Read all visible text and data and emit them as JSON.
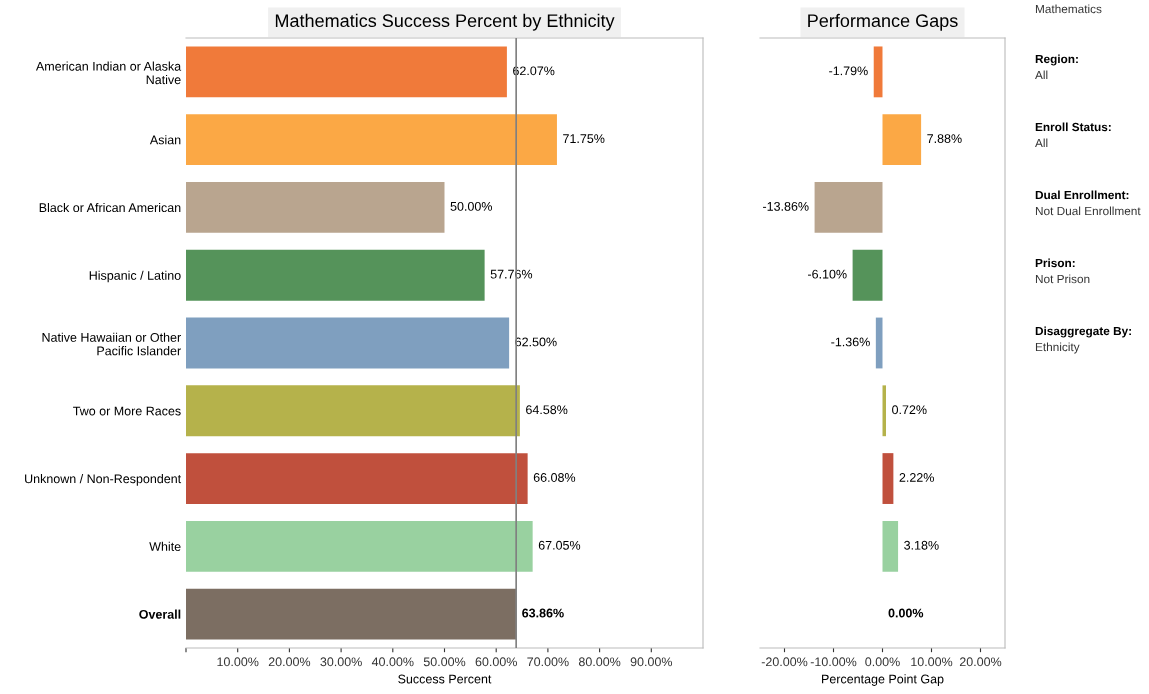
{
  "chart_data": [
    {
      "type": "bar",
      "orientation": "horizontal",
      "title": "Mathematics Success Percent by Ethnicity",
      "xlabel": "Success Percent",
      "categories": [
        "American Indian or Alaska\nNative",
        "Asian",
        "Black or African American",
        "Hispanic / Latino",
        "Native Hawaiian or Other\nPacific Islander",
        "Two or More Races",
        "Unknown / Non-Respondent",
        "White",
        "Overall"
      ],
      "values": [
        62.07,
        71.75,
        50.0,
        57.76,
        62.5,
        64.58,
        66.08,
        67.05,
        63.86
      ],
      "colors": [
        "#f07a3a",
        "#fba845",
        "#b9a58f",
        "#55935a",
        "#7f9fbf",
        "#b5b24b",
        "#c0503d",
        "#99d1a0",
        "#7c6e62"
      ],
      "value_labels": [
        "62.07%",
        "71.75%",
        "50.00%",
        "57.76%",
        "62.50%",
        "64.58%",
        "66.08%",
        "67.05%",
        "63.86%"
      ],
      "xlim": [
        0,
        100
      ],
      "xticks": [
        {
          "value": 0,
          "label": null
        },
        {
          "value": 10,
          "label": "10.00%"
        },
        {
          "value": 20,
          "label": "20.00%"
        },
        {
          "value": 30,
          "label": "30.00%"
        },
        {
          "value": 40,
          "label": "40.00%"
        },
        {
          "value": 50,
          "label": "50.00%"
        },
        {
          "value": 60,
          "label": "60.00%"
        },
        {
          "value": 70,
          "label": "70.00%"
        },
        {
          "value": 80,
          "label": "80.00%"
        },
        {
          "value": 90,
          "label": "90.00%"
        }
      ],
      "ref_lines": [
        {
          "axis": "x",
          "value": 63.86,
          "color": "#808080"
        }
      ],
      "grid": false
    },
    {
      "type": "bar",
      "orientation": "horizontal",
      "title": "Performance Gaps",
      "xlabel": "Percentage Point Gap",
      "categories": [
        null,
        null,
        null,
        null,
        null,
        null,
        null,
        null,
        null
      ],
      "values": [
        -1.79,
        7.88,
        -13.86,
        -6.1,
        -1.36,
        0.72,
        2.22,
        3.18,
        0.0
      ],
      "colors": [
        "#f07a3a",
        "#fba845",
        "#b9a58f",
        "#55935a",
        "#7f9fbf",
        "#b5b24b",
        "#c0503d",
        "#99d1a0",
        "#7c6e62"
      ],
      "value_labels": [
        "-1.79%",
        "7.88%",
        "-13.86%",
        "-6.10%",
        "-1.36%",
        "0.72%",
        "2.22%",
        "3.18%",
        "0.00%"
      ],
      "xlim": [
        -25,
        25
      ],
      "xticks": [
        {
          "value": -20,
          "label": "-20.00%"
        },
        {
          "value": -10,
          "label": "-10.00%"
        },
        {
          "value": 0,
          "label": "0.00%"
        },
        {
          "value": 10,
          "label": "10.00%"
        },
        {
          "value": 20,
          "label": "20.00%"
        }
      ],
      "grid": false
    },
    {
      "type": "other",
      "annotations": [
        "Mathematics",
        "Region:",
        "All",
        "Enroll Status:",
        "All",
        "Dual Enrollment:",
        "Not Dual Enrollment",
        "Prison:",
        "Not Prison",
        "Disaggregate By:",
        "Ethnicity"
      ]
    }
  ]
}
